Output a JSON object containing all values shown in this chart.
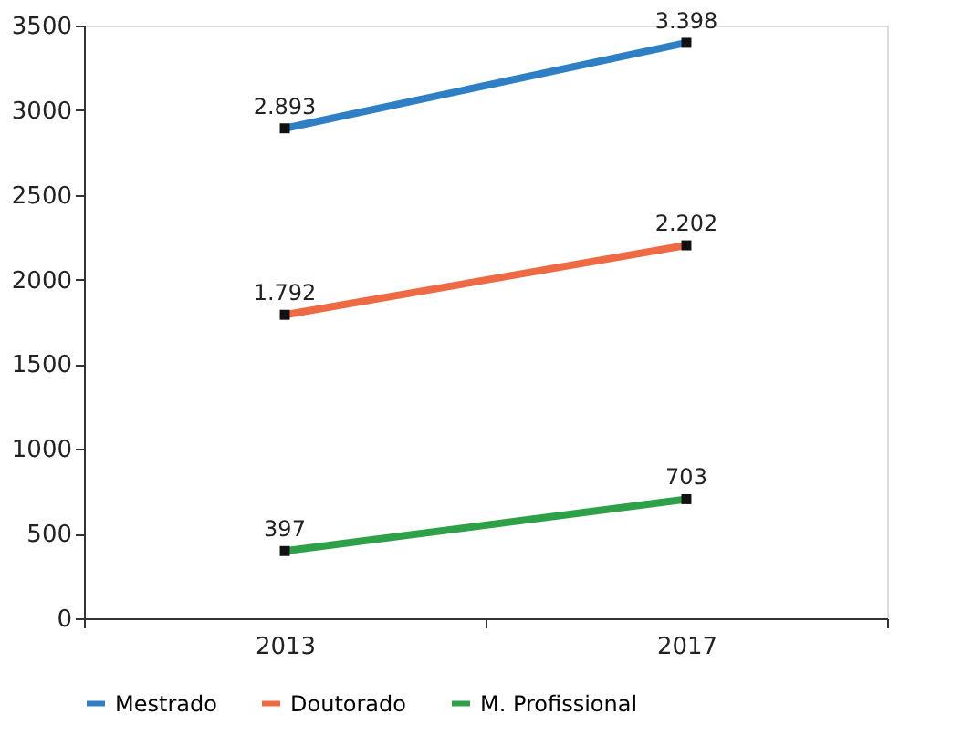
{
  "chart_data": {
    "type": "line",
    "categories": [
      "2013",
      "2017"
    ],
    "series": [
      {
        "name": "Mestrado",
        "color": "#2f7fc4",
        "values": [
          2893,
          3398
        ],
        "value_labels": [
          "2.893",
          "3.398"
        ]
      },
      {
        "name": "Doutorado",
        "color": "#ee6a45",
        "values": [
          1792,
          2202
        ],
        "value_labels": [
          "1.792",
          "2.202"
        ]
      },
      {
        "name": "M. Profissional",
        "color": "#2ea148",
        "values": [
          397,
          703
        ],
        "value_labels": [
          "397",
          "703"
        ]
      }
    ],
    "ylim": [
      0,
      3500
    ],
    "yticks": [
      0,
      500,
      1000,
      1500,
      2000,
      2500,
      3000,
      3500
    ],
    "marker": "square",
    "line_style": "solid",
    "grid": false,
    "legend": "bottom"
  }
}
